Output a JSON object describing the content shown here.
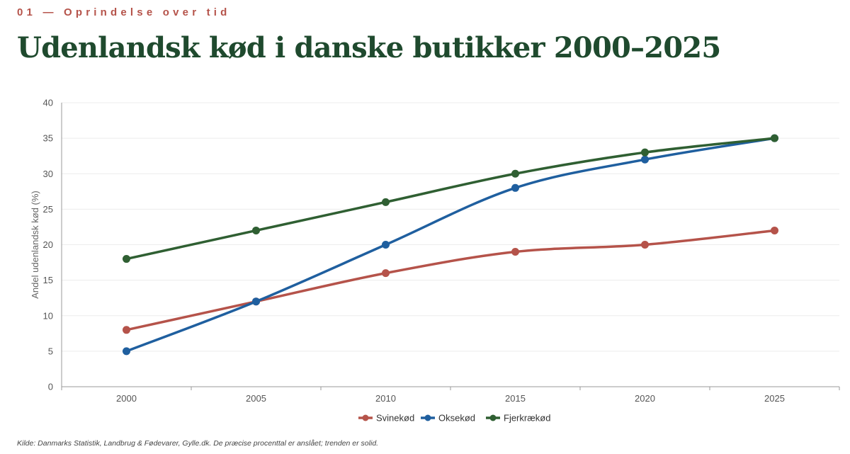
{
  "header": {
    "eyebrow": "01 — Oprindelse over tid",
    "title": "Udenlandsk kød i danske butikker 2000–2025"
  },
  "chart_data": {
    "type": "line",
    "title": "",
    "xlabel": "",
    "ylabel": "Andel udenlandsk kød (%)",
    "x": [
      "2000",
      "2005",
      "2010",
      "2015",
      "2020",
      "2025"
    ],
    "ylim": [
      0,
      40
    ],
    "yticks": [
      "0",
      "5",
      "10",
      "15",
      "20",
      "25",
      "30",
      "35",
      "40"
    ],
    "grid": true,
    "legend_position": "bottom",
    "series": [
      {
        "name": "Svinekød",
        "color": "#b5534a",
        "values": [
          8,
          12,
          16,
          19,
          20,
          22
        ]
      },
      {
        "name": "Oksekød",
        "color": "#1f5f9f",
        "values": [
          5,
          12,
          20,
          28,
          32,
          35
        ]
      },
      {
        "name": "Fjerkrækød",
        "color": "#2f5f32",
        "values": [
          18,
          22,
          26,
          30,
          33,
          35
        ]
      }
    ]
  },
  "footer": {
    "source": "Kilde: Danmarks Statistik, Landbrug & Fødevarer, Gylle.dk. De præcise procenttal er anslået; trenden er solid."
  }
}
